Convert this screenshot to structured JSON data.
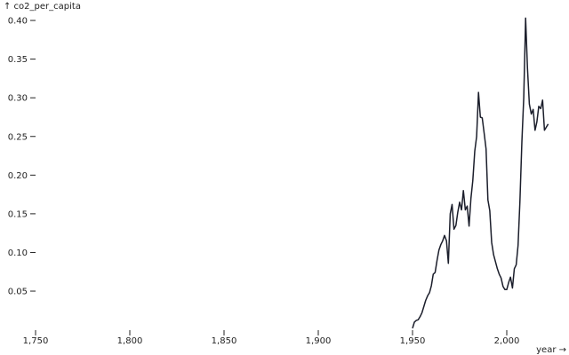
{
  "chart_data": {
    "type": "line",
    "title": "",
    "xlabel": "year →",
    "ylabel": "↑ co2_per_capita",
    "xlim": [
      1750,
      2023
    ],
    "ylim": [
      0,
      0.4
    ],
    "x_ticks": [
      "1,750",
      "1,800",
      "1,850",
      "1,900",
      "1,950",
      "2,000"
    ],
    "x_tick_values": [
      1750,
      1800,
      1850,
      1900,
      1950,
      2000
    ],
    "y_ticks": [
      "0.05",
      "0.10",
      "0.15",
      "0.20",
      "0.25",
      "0.30",
      "0.35",
      "0.40"
    ],
    "y_tick_values": [
      0.05,
      0.1,
      0.15,
      0.2,
      0.25,
      0.3,
      0.35,
      0.4
    ],
    "grid": false,
    "line_color": "#1b1e2b",
    "x": [
      1950,
      1951,
      1952,
      1953,
      1954,
      1955,
      1956,
      1957,
      1958,
      1959,
      1960,
      1961,
      1962,
      1963,
      1964,
      1965,
      1966,
      1967,
      1968,
      1969,
      1970,
      1971,
      1972,
      1973,
      1974,
      1975,
      1976,
      1977,
      1978,
      1979,
      1980,
      1981,
      1982,
      1983,
      1984,
      1985,
      1986,
      1987,
      1988,
      1989,
      1990,
      1991,
      1992,
      1993,
      1994,
      1995,
      1996,
      1997,
      1998,
      1999,
      2000,
      2001,
      2002,
      2003,
      2004,
      2005,
      2006,
      2007,
      2008,
      2009,
      2010,
      2011,
      2012,
      2013,
      2014,
      2015,
      2016,
      2017,
      2018,
      2019,
      2020,
      2021,
      2022
    ],
    "y": [
      0.002,
      0.01,
      0.012,
      0.013,
      0.017,
      0.022,
      0.03,
      0.038,
      0.044,
      0.048,
      0.057,
      0.072,
      0.074,
      0.09,
      0.103,
      0.11,
      0.115,
      0.122,
      0.115,
      0.086,
      0.15,
      0.162,
      0.13,
      0.135,
      0.152,
      0.165,
      0.155,
      0.18,
      0.155,
      0.16,
      0.134,
      0.17,
      0.193,
      0.231,
      0.25,
      0.307,
      0.275,
      0.274,
      0.254,
      0.234,
      0.168,
      0.154,
      0.113,
      0.097,
      0.088,
      0.079,
      0.072,
      0.067,
      0.056,
      0.052,
      0.052,
      0.061,
      0.068,
      0.054,
      0.079,
      0.084,
      0.109,
      0.166,
      0.243,
      0.3,
      0.403,
      0.338,
      0.292,
      0.279,
      0.285,
      0.258,
      0.269,
      0.289,
      0.286,
      0.297,
      0.258,
      0.262,
      0.266
    ]
  }
}
